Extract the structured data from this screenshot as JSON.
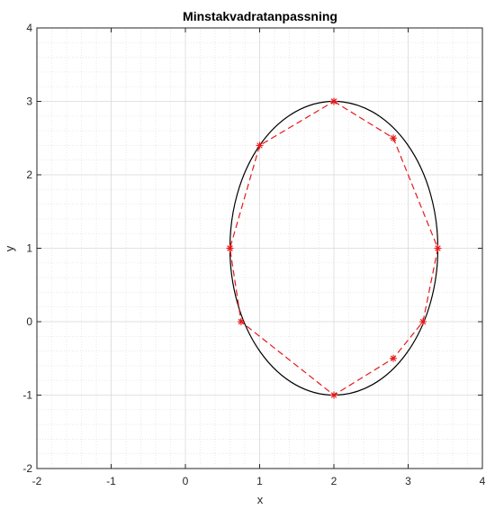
{
  "chart_data": {
    "type": "line",
    "title": "Minstakvadratanpassning",
    "xlabel": "x",
    "ylabel": "y",
    "xlim": [
      -2,
      4
    ],
    "ylim": [
      -2,
      4
    ],
    "xticks": [
      "-2",
      "-1",
      "0",
      "1",
      "2",
      "3",
      "4"
    ],
    "yticks": [
      "-2",
      "-1",
      "0",
      "1",
      "2",
      "3",
      "4"
    ],
    "grid": "major and minor",
    "series": [
      {
        "kind": "ellipse-fit",
        "color": "#000000",
        "center": [
          2.0,
          1.0
        ],
        "radii": [
          1.4,
          2.0
        ]
      },
      {
        "kind": "data-points",
        "color": "#e41a1c",
        "marker": "star",
        "line": "dashed",
        "x": [
          2.0,
          2.8,
          3.4,
          3.2,
          2.8,
          2.0,
          0.75,
          0.6,
          0.6,
          1.0,
          2.0
        ],
        "y": [
          3.0,
          2.5,
          1.0,
          0.0,
          -0.5,
          -1.0,
          0.0,
          1.0,
          1.0,
          2.4,
          3.0
        ]
      }
    ]
  }
}
